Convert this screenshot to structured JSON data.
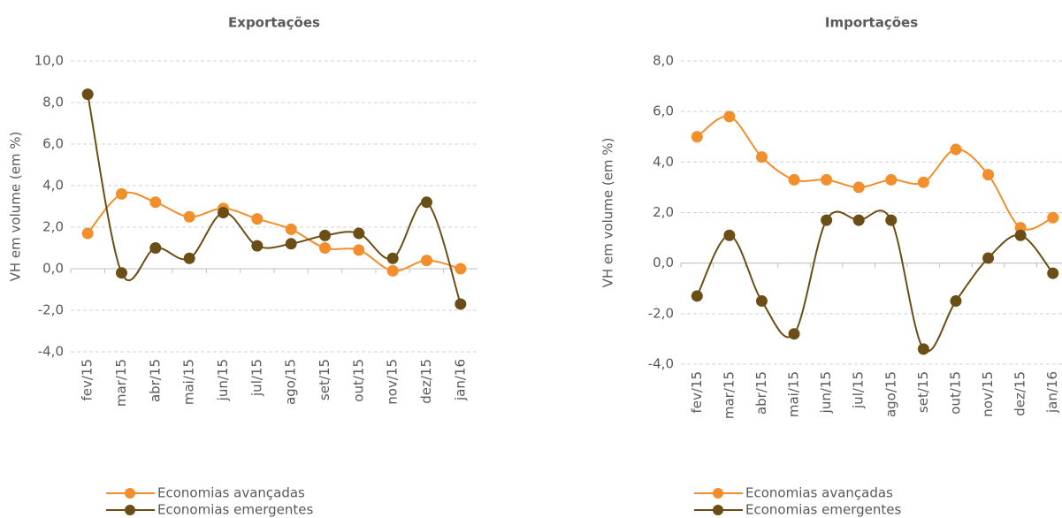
{
  "chart_data": [
    {
      "type": "line",
      "title": "Exportações",
      "y_label": "VH em volume (em %)",
      "categories": [
        "fev/15",
        "mar/15",
        "abr/15",
        "mai/15",
        "jun/15",
        "jul/15",
        "ago/15",
        "set/15",
        "out/15",
        "nov/15",
        "dez/15",
        "jan/16"
      ],
      "series": [
        {
          "name": "Economias avançadas",
          "color": "#f28e2b",
          "values": [
            1.7,
            3.6,
            3.2,
            2.5,
            2.9,
            2.4,
            1.9,
            1.0,
            0.9,
            -0.1,
            0.4,
            0.0
          ]
        },
        {
          "name": "Economias emergentes",
          "color": "#6b4e16",
          "values": [
            8.4,
            -0.2,
            1.0,
            0.5,
            2.7,
            1.1,
            1.2,
            1.6,
            1.7,
            0.5,
            3.2,
            -1.7
          ]
        }
      ],
      "ylim": [
        -4,
        10
      ],
      "yticks": [
        {
          "value": -4,
          "label": "-4,0"
        },
        {
          "value": -2,
          "label": "-2,0"
        },
        {
          "value": 0,
          "label": "0,0"
        },
        {
          "value": 2,
          "label": "2,0"
        },
        {
          "value": 4,
          "label": "4,0"
        },
        {
          "value": 6,
          "label": "6,0"
        },
        {
          "value": 8,
          "label": "8,0"
        },
        {
          "value": 10,
          "label": "10,0"
        }
      ],
      "grid": true
    },
    {
      "type": "line",
      "title": "Importações",
      "y_label": "VH em volume (em %)",
      "categories": [
        "fev/15",
        "mar/15",
        "abr/15",
        "mai/15",
        "jun/15",
        "jul/15",
        "ago/15",
        "set/15",
        "out/15",
        "nov/15",
        "dez/15",
        "jan/16"
      ],
      "series": [
        {
          "name": "Economias avançadas",
          "color": "#f28e2b",
          "values": [
            5.0,
            5.8,
            4.2,
            3.3,
            3.3,
            3.0,
            3.3,
            3.2,
            4.5,
            3.5,
            1.4,
            1.8
          ]
        },
        {
          "name": "Economias emergentes",
          "color": "#6b4e16",
          "values": [
            -1.3,
            1.1,
            -1.5,
            -2.8,
            1.7,
            1.7,
            1.7,
            -3.4,
            -1.5,
            0.2,
            1.1,
            -0.4
          ]
        }
      ],
      "ylim": [
        -4,
        8
      ],
      "yticks": [
        {
          "value": -4,
          "label": "-4,0"
        },
        {
          "value": -2,
          "label": "-2,0"
        },
        {
          "value": 0,
          "label": "0,0"
        },
        {
          "value": 2,
          "label": "2,0"
        },
        {
          "value": 4,
          "label": "4,0"
        },
        {
          "value": 6,
          "label": "6,0"
        },
        {
          "value": 8,
          "label": "8,0"
        }
      ],
      "grid": true
    }
  ]
}
